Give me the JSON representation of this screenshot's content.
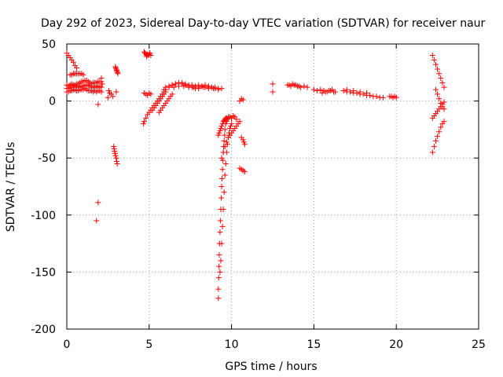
{
  "chart_data": {
    "type": "scatter",
    "title": "Day 292 of 2023, Sidereal Day-to-day VTEC variation (SDTVAR) for receiver naur",
    "xlabel": "GPS time / hours",
    "ylabel": "SDTVAR / TECUs",
    "xlim": [
      0,
      25
    ],
    "ylim": [
      -200,
      50
    ],
    "xticks": [
      0,
      5,
      10,
      15,
      20,
      25
    ],
    "yticks": [
      -200,
      -150,
      -100,
      -50,
      0,
      50
    ],
    "grid": true,
    "marker": "+",
    "color": "#ff0000",
    "series": [
      {
        "name": "SDTVAR",
        "x": [
          0.0,
          0.1,
          0.2,
          0.3,
          0.4,
          0.5,
          0.6,
          0.7,
          0.8,
          0.9,
          1.0,
          1.1,
          1.2,
          1.3,
          1.4,
          1.5,
          1.6,
          1.7,
          1.8,
          1.9,
          2.0,
          2.1,
          0.0,
          0.1,
          0.2,
          0.3,
          0.4,
          0.5,
          0.6,
          0.7,
          0.8,
          0.9,
          1.0,
          1.1,
          1.2,
          1.3,
          1.4,
          1.5,
          1.6,
          1.7,
          1.8,
          1.9,
          2.0,
          2.1,
          0.0,
          0.1,
          0.2,
          0.3,
          0.4,
          0.5,
          0.6,
          0.7,
          0.8,
          0.9,
          1.0,
          1.1,
          1.2,
          1.3,
          1.4,
          1.5,
          1.6,
          1.7,
          1.8,
          1.9,
          2.0,
          2.1,
          0.0,
          0.1,
          0.2,
          0.3,
          0.4,
          0.5,
          0.6,
          0.2,
          0.3,
          0.4,
          0.5,
          0.6,
          0.7,
          0.8,
          0.9,
          1.0,
          1.9,
          1.9,
          1.8,
          2.1,
          2.15,
          2.5,
          2.55,
          2.6,
          2.7,
          2.8,
          3.0,
          2.95,
          2.97,
          3.0,
          3.03,
          3.05,
          3.08,
          3.1,
          2.85,
          2.88,
          2.9,
          2.93,
          2.96,
          3.0,
          3.03,
          3.06,
          4.7,
          4.75,
          4.8,
          4.85,
          4.9,
          4.95,
          5.0,
          5.05,
          5.1,
          4.7,
          4.8,
          4.9,
          5.0,
          5.1,
          4.85,
          4.65,
          4.7,
          4.8,
          4.9,
          5.0,
          5.1,
          5.2,
          5.3,
          5.4,
          5.5,
          5.6,
          5.7,
          5.8,
          5.9,
          6.0,
          5.2,
          5.3,
          5.4,
          5.5,
          5.6,
          5.7,
          5.8,
          5.9,
          6.0,
          5.6,
          5.7,
          5.8,
          5.9,
          6.0,
          6.1,
          6.2,
          6.3,
          6.4,
          5.9,
          6.0,
          6.2,
          6.4,
          6.6,
          6.8,
          7.0,
          7.2,
          7.4,
          7.6,
          7.8,
          8.0,
          8.2,
          8.4,
          8.6,
          8.8,
          9.0,
          9.2,
          9.4,
          6.4,
          6.6,
          6.8,
          7.0,
          7.2,
          7.4,
          7.6,
          7.8,
          8.0,
          8.2,
          8.4,
          8.6,
          8.8,
          9.0,
          6.2,
          6.5,
          6.8,
          7.1,
          7.4,
          7.7,
          8.0,
          8.3,
          8.6,
          8.9,
          9.2,
          9.2,
          9.2,
          9.22,
          9.24,
          9.25,
          9.27,
          9.3,
          9.32,
          9.35,
          9.38,
          9.4,
          9.42,
          9.45,
          9.48,
          9.5,
          9.52,
          9.55,
          9.58,
          9.6,
          9.65,
          9.7,
          9.75,
          9.8,
          9.9,
          10.0,
          10.1,
          10.2,
          10.3,
          9.3,
          9.35,
          9.4,
          9.45,
          9.5,
          9.55,
          9.6,
          9.65,
          9.7,
          9.75,
          9.8,
          9.85,
          9.9,
          9.95,
          10.0,
          9.2,
          9.25,
          9.3,
          9.35,
          9.4,
          9.45,
          9.5,
          9.55,
          9.6,
          9.65,
          9.7,
          9.8,
          9.9,
          10.0,
          9.4,
          9.5,
          9.6,
          9.7,
          9.8,
          9.9,
          10.0,
          10.1,
          10.2,
          10.3,
          10.4,
          10.5,
          10.6,
          10.7,
          10.5,
          10.6,
          10.7,
          10.75,
          10.8,
          10.5,
          10.6,
          10.7,
          10.8,
          12.5,
          12.5,
          13.4,
          13.6,
          13.8,
          14.0,
          14.2,
          14.4,
          14.6,
          13.5,
          13.7,
          13.9,
          14.1,
          15.0,
          15.2,
          15.4,
          15.6,
          15.8,
          16.0,
          16.2,
          15.5,
          15.7,
          15.9,
          16.1,
          16.3,
          16.8,
          17.0,
          17.2,
          17.4,
          17.6,
          17.8,
          18.0,
          18.2,
          18.4,
          18.6,
          18.8,
          19.0,
          19.2,
          17.0,
          17.4,
          17.8,
          18.2,
          19.6,
          19.7,
          19.8,
          19.9,
          20.0,
          22.2,
          22.3,
          22.4,
          22.5,
          22.6,
          22.7,
          22.8,
          22.9,
          22.2,
          22.3,
          22.4,
          22.5,
          22.6,
          22.7,
          22.8,
          22.9,
          22.4,
          22.5,
          22.6,
          22.7,
          22.8,
          22.9,
          22.2,
          22.3,
          22.4,
          22.5,
          22.6,
          22.7,
          22.8,
          22.9
        ],
        "y": [
          8,
          8,
          9,
          9,
          10,
          10,
          9,
          9,
          10,
          10,
          10,
          11,
          10,
          9,
          9,
          9,
          8,
          9,
          8,
          9,
          9,
          8,
          11,
          11,
          12,
          12,
          12,
          13,
          13,
          12,
          13,
          12,
          13,
          14,
          14,
          14,
          13,
          12,
          12,
          12,
          13,
          13,
          12,
          12,
          14,
          13,
          14,
          15,
          14,
          14,
          15,
          15,
          16,
          17,
          17,
          18,
          18,
          17,
          16,
          15,
          16,
          16,
          16,
          17,
          17,
          17,
          42,
          40,
          38,
          36,
          34,
          31,
          29,
          23,
          23,
          24,
          24,
          24,
          24,
          24,
          24,
          23,
          -3,
          -89,
          -105,
          20,
          15,
          3,
          9,
          7,
          6,
          4,
          8,
          30,
          29,
          28,
          27,
          26,
          25,
          24,
          -40,
          -42,
          -44,
          -46,
          -48,
          -50,
          -53,
          -55,
          43,
          42,
          41,
          40,
          41,
          40,
          41,
          42,
          40,
          7,
          6,
          5,
          7,
          6,
          39,
          -20,
          -18,
          -15,
          -12,
          -10,
          -8,
          -6,
          -4,
          -2,
          0,
          2,
          4,
          6,
          8,
          10,
          -8,
          -6,
          -4,
          -2,
          0,
          2,
          4,
          6,
          8,
          -10,
          -8,
          -6,
          -4,
          -2,
          0,
          2,
          4,
          6,
          10,
          12,
          13,
          14,
          15,
          16,
          15,
          14,
          13,
          12,
          11,
          12,
          13,
          12,
          11,
          12,
          11,
          10,
          11,
          14,
          15,
          16,
          16,
          15,
          14,
          14,
          13,
          14,
          13,
          14,
          13,
          12,
          12,
          12,
          12,
          13,
          13,
          12,
          12,
          11,
          12,
          12,
          11,
          11,
          -165,
          -173,
          -155,
          -145,
          -135,
          -125,
          -115,
          -105,
          -95,
          -85,
          -75,
          -68,
          -60,
          -52,
          -45,
          -40,
          -35,
          -30,
          -25,
          -20,
          -18,
          -16,
          -15,
          -14,
          -15,
          -13,
          -14,
          -16,
          -150,
          -140,
          -125,
          -110,
          -95,
          -80,
          -65,
          -55,
          -45,
          -38,
          -32,
          -28,
          -24,
          -22,
          -20,
          -30,
          -28,
          -26,
          -24,
          -22,
          -20,
          -18,
          -17,
          -16,
          -15,
          -15,
          -14,
          -14,
          -15,
          -50,
          -45,
          -40,
          -36,
          -32,
          -30,
          -28,
          -26,
          -24,
          -22,
          -20,
          -18,
          2,
          1,
          0,
          -32,
          -34,
          -36,
          -38,
          -59,
          -60,
          -61,
          -62,
          15,
          8,
          14,
          13,
          14,
          13,
          12,
          13,
          12,
          14,
          15,
          14,
          13,
          10,
          9,
          10,
          9,
          8,
          9,
          8,
          7,
          8,
          9,
          10,
          8,
          9,
          8,
          8,
          7,
          7,
          6,
          6,
          5,
          5,
          4,
          4,
          3,
          3,
          10,
          9,
          8,
          7,
          4,
          4,
          3,
          4,
          3,
          40,
          36,
          32,
          28,
          24,
          20,
          16,
          12,
          -45,
          -40,
          -35,
          -31,
          -27,
          -23,
          -20,
          -18,
          10,
          6,
          2,
          -2,
          -5,
          -7,
          -15,
          -13,
          -11,
          -9,
          -7,
          -5,
          -3,
          -1
        ]
      }
    ]
  }
}
